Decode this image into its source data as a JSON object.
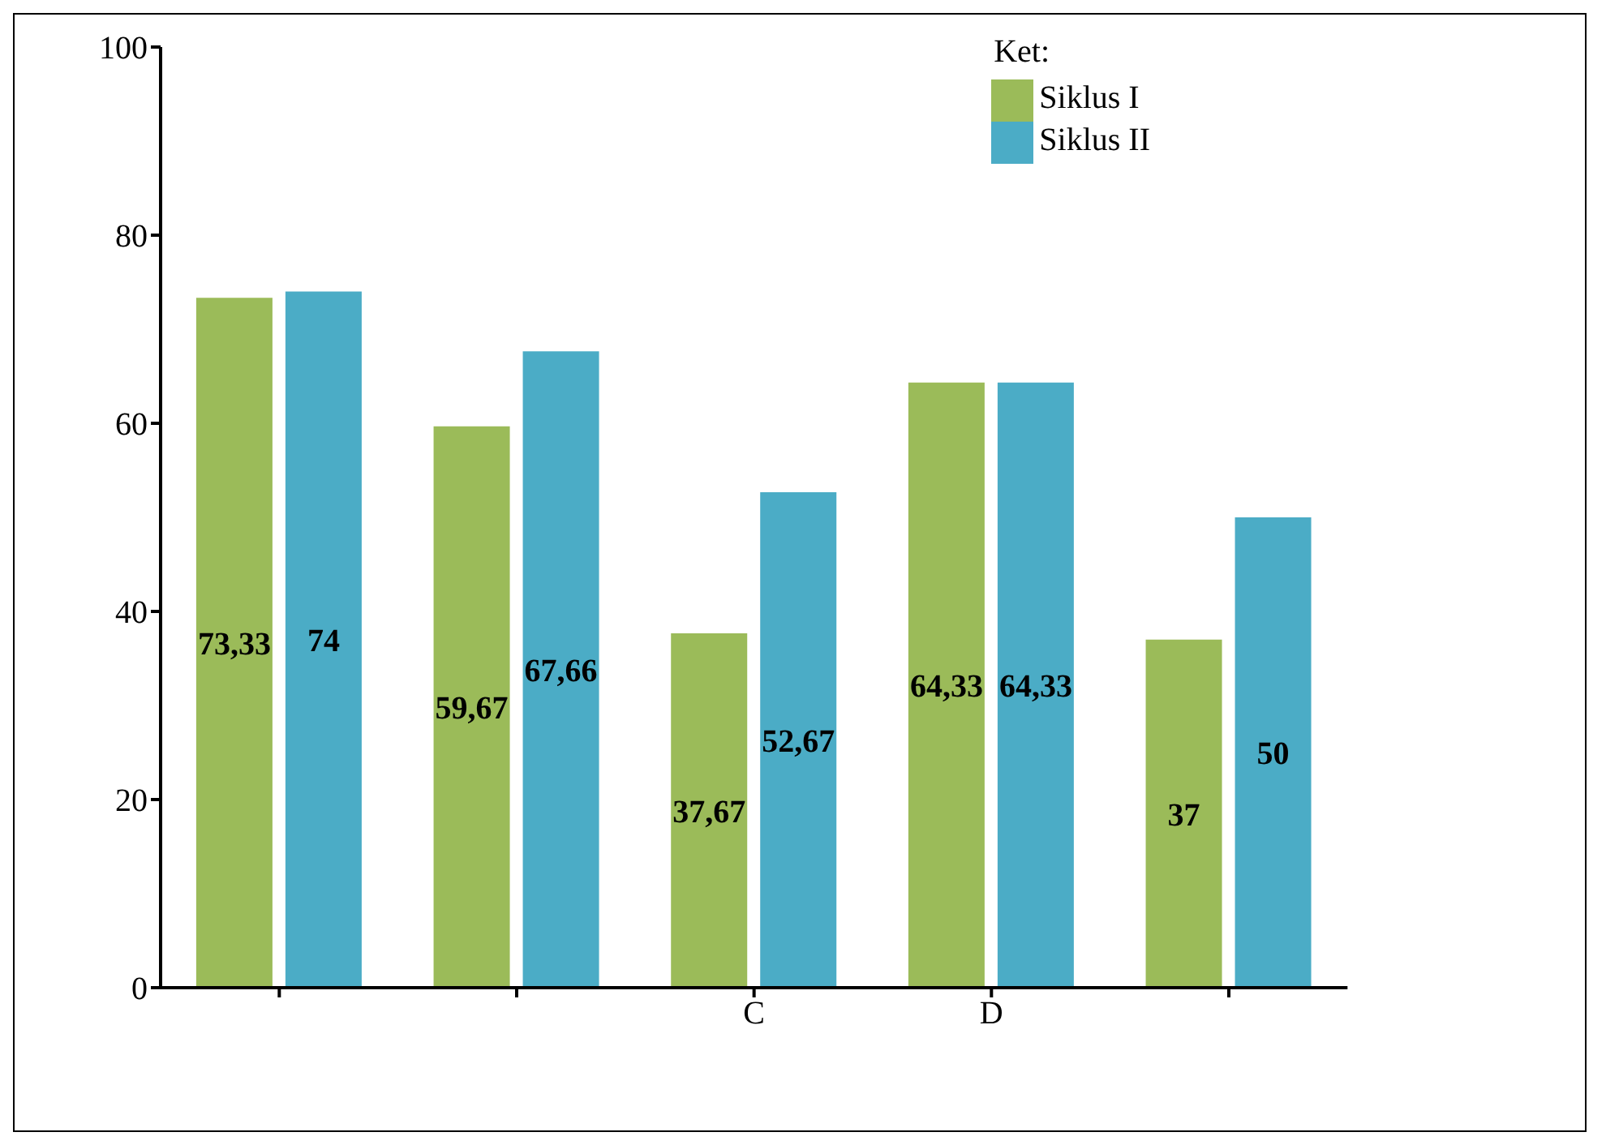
{
  "chart_data": {
    "type": "bar",
    "categories": [
      null,
      null,
      "C",
      "D",
      null
    ],
    "series": [
      {
        "name": "Siklus I",
        "color": "#9bbb59",
        "values": [
          73.33,
          59.67,
          37.67,
          64.33,
          37
        ],
        "value_labels": [
          "73,33",
          "59,67",
          "37,67",
          "64,33",
          "37"
        ]
      },
      {
        "name": "Siklus II",
        "color": "#4bacc6",
        "values": [
          74,
          67.66,
          52.67,
          64.33,
          50
        ],
        "value_labels": [
          "74",
          "67,66",
          "52,67",
          "64,33",
          "50"
        ]
      }
    ],
    "ylim": [
      0,
      100
    ],
    "yticks": [
      0,
      20,
      40,
      60,
      80,
      100
    ],
    "legend": "top right",
    "legend_title": "Ket:",
    "grid": false
  }
}
